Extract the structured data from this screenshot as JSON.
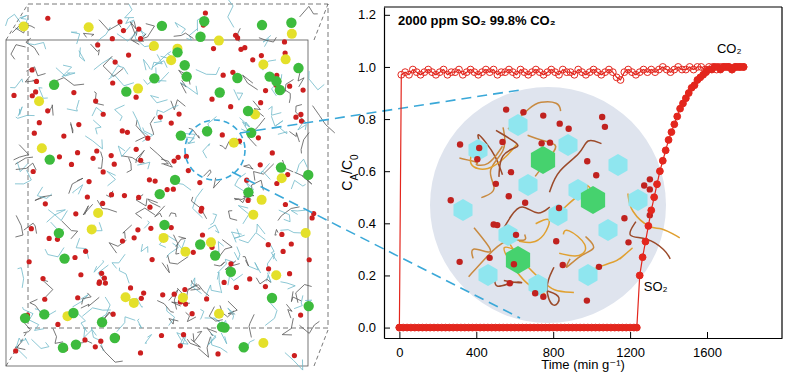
{
  "chart_data": {
    "type": "line",
    "title": "2000 ppm SO₂ 99.8% CO₂",
    "x_label": "Time (min g⁻¹)",
    "y_label": "CA/C0",
    "xlim": [
      -80,
      1990
    ],
    "ylim": [
      -0.04,
      1.23
    ],
    "xticks": [
      0,
      400,
      800,
      1200,
      1600
    ],
    "yticks": [
      {
        "value": 0,
        "label": "0.0"
      },
      0.2,
      0.4,
      0.6,
      0.8,
      {
        "value": 1,
        "label": "1.0"
      },
      1.2
    ],
    "grid": false,
    "series": [
      {
        "name": "CO₂",
        "color": "#e3261d",
        "marker": "open-circle",
        "line_style": "solid",
        "x": [
          0,
          10,
          30,
          50,
          70,
          90,
          110,
          130,
          150,
          170,
          190,
          210,
          230,
          250,
          270,
          290,
          310,
          330,
          350,
          370,
          390,
          410,
          430,
          450,
          470,
          490,
          510,
          530,
          550,
          570,
          590,
          610,
          630,
          650,
          670,
          690,
          710,
          730,
          750,
          770,
          790,
          810,
          830,
          850,
          870,
          890,
          910,
          930,
          950,
          970,
          990,
          1010,
          1030,
          1050,
          1070,
          1090,
          1110,
          1130,
          1150,
          1170,
          1190,
          1210,
          1230,
          1250,
          1270,
          1290,
          1310,
          1330,
          1350,
          1370,
          1390,
          1410,
          1430,
          1450,
          1470,
          1490,
          1510,
          1530,
          1550,
          1570,
          1590,
          1610,
          1630,
          1650,
          1670,
          1690,
          1710,
          1730,
          1750,
          1770,
          1790
        ],
        "values": [
          0,
          0.97,
          0.98,
          0.97,
          0.99,
          0.98,
          0.97,
          0.98,
          0.99,
          0.98,
          0.97,
          0.98,
          0.99,
          0.97,
          0.98,
          0.98,
          0.99,
          0.97,
          0.98,
          0.99,
          0.98,
          0.97,
          0.98,
          0.99,
          0.98,
          0.99,
          0.97,
          0.98,
          0.98,
          0.99,
          0.98,
          0.97,
          0.99,
          0.98,
          0.97,
          0.98,
          0.99,
          0.98,
          0.97,
          0.98,
          0.99,
          0.98,
          0.97,
          0.99,
          0.98,
          0.98,
          0.97,
          0.99,
          0.98,
          0.97,
          0.98,
          0.99,
          0.98,
          0.97,
          0.98,
          0.99,
          0.98,
          0.96,
          0.95,
          0.98,
          0.99,
          0.98,
          0.97,
          0.98,
          0.99,
          0.98,
          0.99,
          0.98,
          0.99,
          1.0,
          0.99,
          0.98,
          0.99,
          1.0,
          0.99,
          0.99,
          1.0,
          0.99,
          1.0,
          1.0,
          0.99,
          1.0,
          1.0,
          0.99,
          1.0,
          1.0,
          1.0,
          0.99,
          1.0,
          1.0,
          1.0
        ]
      },
      {
        "name": "SO₂",
        "color": "#e3261d",
        "marker": "filled-circle",
        "line_style": "solid",
        "x": [
          0,
          20,
          40,
          60,
          80,
          100,
          120,
          140,
          160,
          180,
          200,
          220,
          240,
          260,
          280,
          300,
          320,
          340,
          360,
          380,
          400,
          420,
          440,
          460,
          480,
          500,
          520,
          540,
          560,
          580,
          600,
          620,
          640,
          660,
          680,
          700,
          720,
          740,
          760,
          780,
          800,
          820,
          840,
          860,
          880,
          900,
          920,
          940,
          960,
          980,
          1000,
          1020,
          1040,
          1060,
          1080,
          1100,
          1120,
          1140,
          1160,
          1180,
          1200,
          1220,
          1235,
          1250,
          1265,
          1280,
          1295,
          1310,
          1325,
          1340,
          1355,
          1370,
          1385,
          1400,
          1415,
          1430,
          1445,
          1460,
          1475,
          1490,
          1505,
          1520,
          1535,
          1550,
          1565,
          1580,
          1595,
          1610,
          1625,
          1640,
          1655,
          1670,
          1685,
          1700,
          1715,
          1730,
          1745,
          1760,
          1775,
          1790
        ],
        "values": [
          0,
          0,
          0,
          0,
          0,
          0,
          0,
          0,
          0,
          0,
          0,
          0,
          0,
          0,
          0,
          0,
          0,
          0,
          0,
          0,
          0,
          0,
          0,
          0,
          0,
          0,
          0,
          0,
          0,
          0,
          0,
          0,
          0,
          0,
          0,
          0,
          0,
          0,
          0,
          0,
          0,
          0,
          0,
          0,
          0,
          0,
          0,
          0,
          0,
          0,
          0,
          0,
          0,
          0,
          0,
          0,
          0,
          0,
          0,
          0,
          0,
          0,
          0,
          0.2,
          0.27,
          0.33,
          0.39,
          0.45,
          0.5,
          0.55,
          0.6,
          0.64,
          0.68,
          0.72,
          0.75,
          0.78,
          0.81,
          0.84,
          0.86,
          0.88,
          0.9,
          0.92,
          0.93,
          0.95,
          0.96,
          0.97,
          0.98,
          0.99,
          0.99,
          1.0,
          1.0,
          0.99,
          1.0,
          1.0,
          1.0,
          0.99,
          1.0,
          1.0,
          1.0,
          1.0
        ]
      }
    ]
  }
}
